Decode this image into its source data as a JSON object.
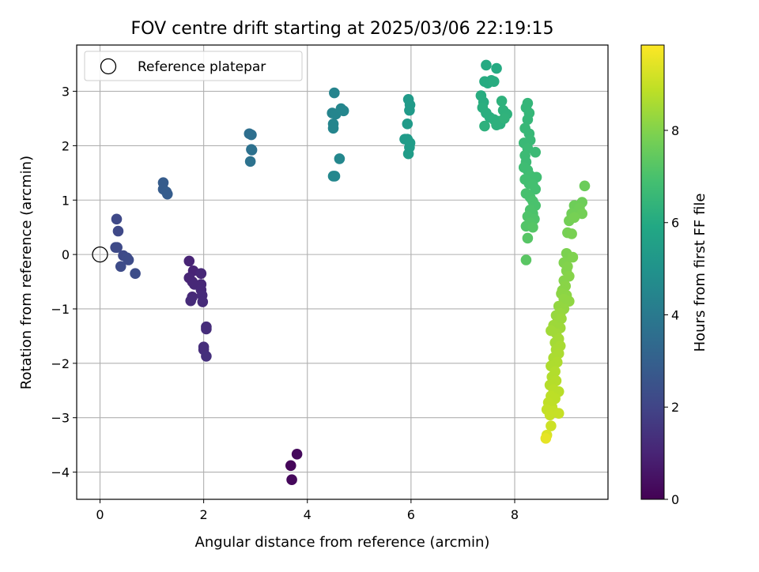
{
  "chart_data": {
    "type": "scatter",
    "title": "FOV centre drift starting at 2025/03/06 22:19:15",
    "xlabel": "Angular distance from reference (arcmin)",
    "ylabel": "Rotation from reference (arcmin)",
    "xlim": [
      -0.45,
      9.8
    ],
    "ylim": [
      -4.5,
      3.85
    ],
    "xticks": [
      0,
      2,
      4,
      6,
      8
    ],
    "yticks": [
      -4,
      -3,
      -2,
      -1,
      0,
      1,
      2,
      3
    ],
    "grid": true,
    "legend": {
      "position": "top-left",
      "entries": [
        "Reference platepar"
      ]
    },
    "reference_point": {
      "x": 0,
      "y": 0,
      "label": "Reference platepar"
    },
    "colorbar": {
      "label": "Hours from first FF file",
      "range": [
        0,
        9.85
      ],
      "ticks": [
        0,
        2,
        4,
        6,
        8
      ],
      "colormap": "viridis"
    },
    "points": [
      {
        "x": 3.68,
        "y": -3.88,
        "h": 0.15
      },
      {
        "x": 3.7,
        "y": -4.14,
        "h": 0.2
      },
      {
        "x": 3.8,
        "y": -3.67,
        "h": 0.25
      },
      {
        "x": 1.72,
        "y": -0.12,
        "h": 1.0
      },
      {
        "x": 1.8,
        "y": -0.3,
        "h": 1.0
      },
      {
        "x": 1.72,
        "y": -0.43,
        "h": 1.05
      },
      {
        "x": 1.78,
        "y": -0.5,
        "h": 1.05
      },
      {
        "x": 1.82,
        "y": -0.55,
        "h": 1.1
      },
      {
        "x": 1.95,
        "y": -0.35,
        "h": 1.1
      },
      {
        "x": 1.95,
        "y": -0.55,
        "h": 1.1
      },
      {
        "x": 1.95,
        "y": -0.65,
        "h": 1.15
      },
      {
        "x": 1.78,
        "y": -0.78,
        "h": 1.15
      },
      {
        "x": 1.75,
        "y": -0.85,
        "h": 1.2
      },
      {
        "x": 1.97,
        "y": -0.75,
        "h": 1.2
      },
      {
        "x": 1.98,
        "y": -0.87,
        "h": 1.2
      },
      {
        "x": 2.05,
        "y": -1.33,
        "h": 1.25
      },
      {
        "x": 2.05,
        "y": -1.37,
        "h": 1.25
      },
      {
        "x": 2.0,
        "y": -1.7,
        "h": 1.3
      },
      {
        "x": 2.0,
        "y": -1.75,
        "h": 1.3
      },
      {
        "x": 2.05,
        "y": -1.87,
        "h": 1.35
      },
      {
        "x": 0.32,
        "y": 0.65,
        "h": 2.15
      },
      {
        "x": 0.35,
        "y": 0.43,
        "h": 2.15
      },
      {
        "x": 0.3,
        "y": 0.13,
        "h": 2.2
      },
      {
        "x": 0.33,
        "y": 0.13,
        "h": 2.2
      },
      {
        "x": 0.45,
        "y": -0.02,
        "h": 2.2
      },
      {
        "x": 0.52,
        "y": -0.06,
        "h": 2.25
      },
      {
        "x": 0.55,
        "y": -0.1,
        "h": 2.25
      },
      {
        "x": 0.4,
        "y": -0.22,
        "h": 2.25
      },
      {
        "x": 0.68,
        "y": -0.35,
        "h": 2.3
      },
      {
        "x": 1.22,
        "y": 1.32,
        "h": 2.85
      },
      {
        "x": 1.22,
        "y": 1.2,
        "h": 2.85
      },
      {
        "x": 1.28,
        "y": 1.15,
        "h": 2.9
      },
      {
        "x": 1.3,
        "y": 1.11,
        "h": 2.9
      },
      {
        "x": 2.88,
        "y": 2.22,
        "h": 3.6
      },
      {
        "x": 2.92,
        "y": 2.2,
        "h": 3.6
      },
      {
        "x": 2.92,
        "y": 1.93,
        "h": 3.65
      },
      {
        "x": 2.93,
        "y": 1.92,
        "h": 3.65
      },
      {
        "x": 2.9,
        "y": 1.71,
        "h": 3.7
      },
      {
        "x": 4.52,
        "y": 2.97,
        "h": 4.4
      },
      {
        "x": 4.48,
        "y": 2.6,
        "h": 4.4
      },
      {
        "x": 4.55,
        "y": 2.58,
        "h": 4.45
      },
      {
        "x": 4.5,
        "y": 2.4,
        "h": 4.45
      },
      {
        "x": 4.5,
        "y": 2.32,
        "h": 4.45
      },
      {
        "x": 4.65,
        "y": 2.68,
        "h": 4.5
      },
      {
        "x": 4.7,
        "y": 2.64,
        "h": 4.5
      },
      {
        "x": 4.62,
        "y": 1.76,
        "h": 4.55
      },
      {
        "x": 4.5,
        "y": 1.44,
        "h": 4.55
      },
      {
        "x": 4.53,
        "y": 1.44,
        "h": 4.55
      },
      {
        "x": 5.95,
        "y": 2.85,
        "h": 5.3
      },
      {
        "x": 5.98,
        "y": 2.75,
        "h": 5.3
      },
      {
        "x": 5.97,
        "y": 2.65,
        "h": 5.3
      },
      {
        "x": 5.93,
        "y": 2.4,
        "h": 5.35
      },
      {
        "x": 5.88,
        "y": 2.12,
        "h": 5.35
      },
      {
        "x": 5.93,
        "y": 2.12,
        "h": 5.35
      },
      {
        "x": 5.98,
        "y": 2.05,
        "h": 5.4
      },
      {
        "x": 5.97,
        "y": 1.97,
        "h": 5.4
      },
      {
        "x": 5.95,
        "y": 1.85,
        "h": 5.4
      },
      {
        "x": 7.45,
        "y": 3.48,
        "h": 6.0
      },
      {
        "x": 7.65,
        "y": 3.42,
        "h": 6.0
      },
      {
        "x": 7.42,
        "y": 3.18,
        "h": 6.05
      },
      {
        "x": 7.48,
        "y": 3.15,
        "h": 6.05
      },
      {
        "x": 7.55,
        "y": 3.2,
        "h": 6.05
      },
      {
        "x": 7.6,
        "y": 3.18,
        "h": 6.1
      },
      {
        "x": 7.35,
        "y": 2.92,
        "h": 6.1
      },
      {
        "x": 7.4,
        "y": 2.8,
        "h": 6.1
      },
      {
        "x": 7.38,
        "y": 2.7,
        "h": 6.15
      },
      {
        "x": 7.45,
        "y": 2.6,
        "h": 6.15
      },
      {
        "x": 7.52,
        "y": 2.52,
        "h": 6.15
      },
      {
        "x": 7.6,
        "y": 2.48,
        "h": 6.2
      },
      {
        "x": 7.68,
        "y": 2.45,
        "h": 6.2
      },
      {
        "x": 7.72,
        "y": 2.4,
        "h": 6.2
      },
      {
        "x": 7.42,
        "y": 2.36,
        "h": 6.25
      },
      {
        "x": 7.65,
        "y": 2.38,
        "h": 6.25
      },
      {
        "x": 7.75,
        "y": 2.82,
        "h": 6.3
      },
      {
        "x": 7.78,
        "y": 2.65,
        "h": 6.3
      },
      {
        "x": 7.85,
        "y": 2.58,
        "h": 6.3
      },
      {
        "x": 7.8,
        "y": 2.5,
        "h": 6.35
      },
      {
        "x": 8.25,
        "y": 2.78,
        "h": 6.45
      },
      {
        "x": 8.22,
        "y": 2.7,
        "h": 6.45
      },
      {
        "x": 8.28,
        "y": 2.6,
        "h": 6.5
      },
      {
        "x": 8.25,
        "y": 2.48,
        "h": 6.5
      },
      {
        "x": 8.2,
        "y": 2.32,
        "h": 6.55
      },
      {
        "x": 8.28,
        "y": 2.22,
        "h": 6.55
      },
      {
        "x": 8.3,
        "y": 2.1,
        "h": 6.6
      },
      {
        "x": 8.18,
        "y": 2.05,
        "h": 6.6
      },
      {
        "x": 8.25,
        "y": 1.95,
        "h": 6.65
      },
      {
        "x": 8.4,
        "y": 1.88,
        "h": 6.65
      },
      {
        "x": 8.2,
        "y": 1.82,
        "h": 6.7
      },
      {
        "x": 8.22,
        "y": 1.7,
        "h": 6.7
      },
      {
        "x": 8.18,
        "y": 1.6,
        "h": 6.75
      },
      {
        "x": 8.25,
        "y": 1.55,
        "h": 6.75
      },
      {
        "x": 8.3,
        "y": 1.45,
        "h": 6.8
      },
      {
        "x": 8.42,
        "y": 1.42,
        "h": 6.8
      },
      {
        "x": 8.2,
        "y": 1.38,
        "h": 6.85
      },
      {
        "x": 8.28,
        "y": 1.3,
        "h": 6.85
      },
      {
        "x": 8.35,
        "y": 1.28,
        "h": 6.9
      },
      {
        "x": 8.4,
        "y": 1.2,
        "h": 6.9
      },
      {
        "x": 8.22,
        "y": 1.12,
        "h": 6.95
      },
      {
        "x": 8.3,
        "y": 1.05,
        "h": 6.95
      },
      {
        "x": 8.35,
        "y": 0.98,
        "h": 7.0
      },
      {
        "x": 8.4,
        "y": 0.9,
        "h": 7.0
      },
      {
        "x": 8.3,
        "y": 0.82,
        "h": 7.05
      },
      {
        "x": 8.35,
        "y": 0.75,
        "h": 7.05
      },
      {
        "x": 8.25,
        "y": 0.7,
        "h": 7.1
      },
      {
        "x": 8.38,
        "y": 0.65,
        "h": 7.1
      },
      {
        "x": 8.3,
        "y": 0.58,
        "h": 7.15
      },
      {
        "x": 8.22,
        "y": 0.52,
        "h": 7.15
      },
      {
        "x": 8.35,
        "y": 0.5,
        "h": 7.2
      },
      {
        "x": 8.25,
        "y": 0.3,
        "h": 7.25
      },
      {
        "x": 8.22,
        "y": -0.1,
        "h": 7.3
      },
      {
        "x": 9.35,
        "y": 1.26,
        "h": 7.6
      },
      {
        "x": 9.3,
        "y": 0.96,
        "h": 7.65
      },
      {
        "x": 9.15,
        "y": 0.9,
        "h": 7.65
      },
      {
        "x": 9.25,
        "y": 0.85,
        "h": 7.7
      },
      {
        "x": 9.1,
        "y": 0.75,
        "h": 7.7
      },
      {
        "x": 9.3,
        "y": 0.75,
        "h": 7.75
      },
      {
        "x": 9.05,
        "y": 0.62,
        "h": 7.75
      },
      {
        "x": 9.15,
        "y": 0.68,
        "h": 7.8
      },
      {
        "x": 9.02,
        "y": 0.4,
        "h": 7.8
      },
      {
        "x": 9.1,
        "y": 0.38,
        "h": 7.85
      },
      {
        "x": 9.0,
        "y": 0.02,
        "h": 7.9
      },
      {
        "x": 9.05,
        "y": -0.05,
        "h": 7.9
      },
      {
        "x": 9.12,
        "y": -0.05,
        "h": 7.95
      },
      {
        "x": 8.95,
        "y": -0.15,
        "h": 7.95
      },
      {
        "x": 9.02,
        "y": -0.22,
        "h": 8.0
      },
      {
        "x": 9.0,
        "y": -0.3,
        "h": 8.0
      },
      {
        "x": 9.05,
        "y": -0.4,
        "h": 8.05
      },
      {
        "x": 8.95,
        "y": -0.48,
        "h": 8.05
      },
      {
        "x": 8.98,
        "y": -0.58,
        "h": 8.1
      },
      {
        "x": 8.92,
        "y": -0.66,
        "h": 8.1
      },
      {
        "x": 8.9,
        "y": -0.72,
        "h": 8.15
      },
      {
        "x": 9.0,
        "y": -0.75,
        "h": 8.15
      },
      {
        "x": 8.95,
        "y": -0.82,
        "h": 8.2
      },
      {
        "x": 9.05,
        "y": -0.86,
        "h": 8.2
      },
      {
        "x": 8.85,
        "y": -0.95,
        "h": 8.25
      },
      {
        "x": 8.95,
        "y": -1.0,
        "h": 8.25
      },
      {
        "x": 8.88,
        "y": -1.08,
        "h": 8.3
      },
      {
        "x": 8.8,
        "y": -1.12,
        "h": 8.3
      },
      {
        "x": 8.9,
        "y": -1.18,
        "h": 8.35
      },
      {
        "x": 8.82,
        "y": -1.25,
        "h": 8.35
      },
      {
        "x": 8.75,
        "y": -1.3,
        "h": 8.4
      },
      {
        "x": 8.88,
        "y": -1.35,
        "h": 8.4
      },
      {
        "x": 8.7,
        "y": -1.4,
        "h": 8.45
      },
      {
        "x": 8.8,
        "y": -1.45,
        "h": 8.45
      },
      {
        "x": 8.85,
        "y": -1.55,
        "h": 8.5
      },
      {
        "x": 8.78,
        "y": -1.62,
        "h": 8.5
      },
      {
        "x": 8.88,
        "y": -1.68,
        "h": 8.55
      },
      {
        "x": 8.8,
        "y": -1.75,
        "h": 8.55
      },
      {
        "x": 8.85,
        "y": -1.82,
        "h": 8.6
      },
      {
        "x": 8.75,
        "y": -1.9,
        "h": 8.6
      },
      {
        "x": 8.82,
        "y": -1.98,
        "h": 8.65
      },
      {
        "x": 8.7,
        "y": -2.05,
        "h": 8.65
      },
      {
        "x": 8.78,
        "y": -2.15,
        "h": 8.7
      },
      {
        "x": 8.72,
        "y": -2.25,
        "h": 8.7
      },
      {
        "x": 8.8,
        "y": -2.32,
        "h": 8.75
      },
      {
        "x": 8.68,
        "y": -2.4,
        "h": 8.75
      },
      {
        "x": 8.75,
        "y": -2.48,
        "h": 8.8
      },
      {
        "x": 8.85,
        "y": -2.52,
        "h": 8.8
      },
      {
        "x": 8.7,
        "y": -2.6,
        "h": 8.85
      },
      {
        "x": 8.78,
        "y": -2.65,
        "h": 8.85
      },
      {
        "x": 8.65,
        "y": -2.72,
        "h": 8.9
      },
      {
        "x": 8.72,
        "y": -2.8,
        "h": 8.9
      },
      {
        "x": 8.62,
        "y": -2.85,
        "h": 8.95
      },
      {
        "x": 8.75,
        "y": -2.88,
        "h": 8.95
      },
      {
        "x": 8.85,
        "y": -2.92,
        "h": 9.0
      },
      {
        "x": 8.68,
        "y": -2.95,
        "h": 9.0
      },
      {
        "x": 8.7,
        "y": -3.15,
        "h": 9.1
      },
      {
        "x": 8.62,
        "y": -3.32,
        "h": 9.3
      },
      {
        "x": 8.6,
        "y": -3.38,
        "h": 9.5
      }
    ]
  }
}
